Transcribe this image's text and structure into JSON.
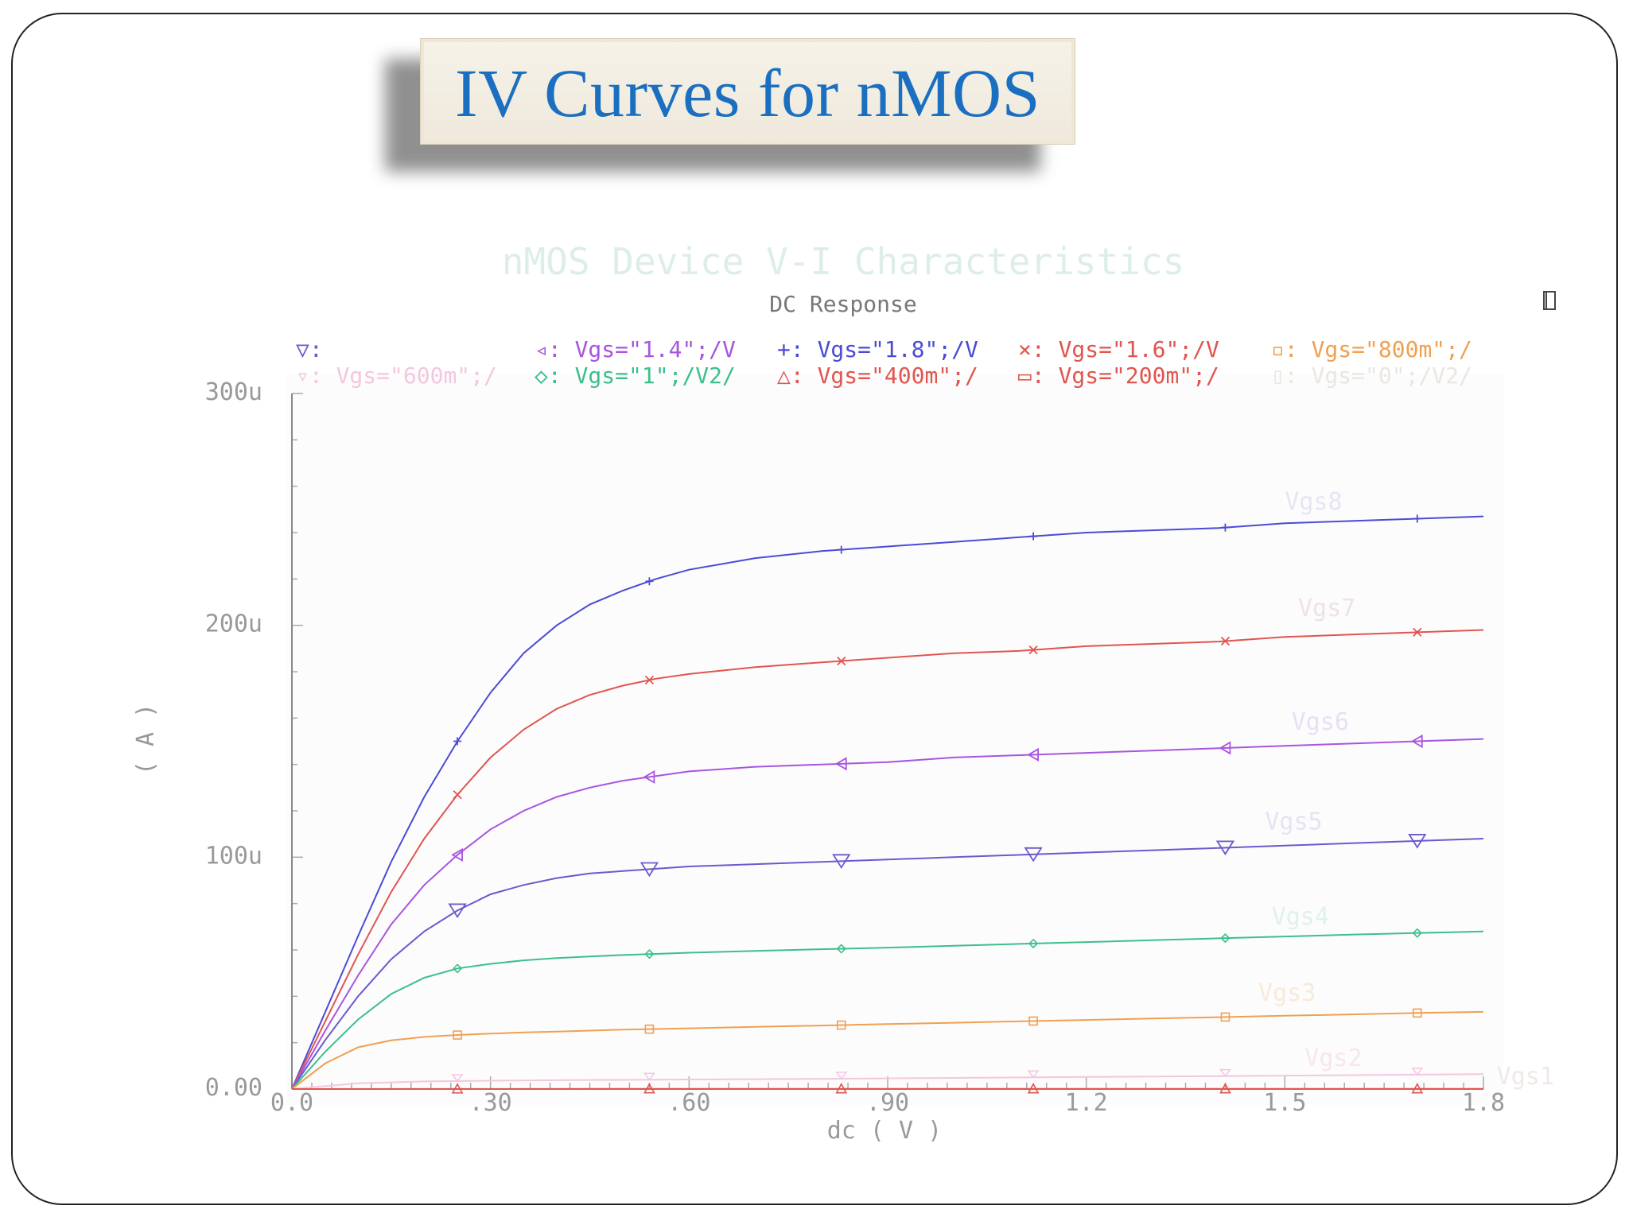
{
  "slide": {
    "title": "IV Curves for nMOS"
  },
  "chart_data": {
    "type": "line",
    "title": "nMOS Device V-I Characteristics",
    "subtitle": "DC Response",
    "xlabel": "dc ( V )",
    "ylabel": "( A )",
    "xlim": [
      0,
      1.8
    ],
    "ylim": [
      0,
      300
    ],
    "x_ticks": [
      "0.0",
      ".30",
      ".60",
      ".90",
      "1.2",
      "1.5",
      "1.8"
    ],
    "y_ticks": [
      "0.00",
      "100u",
      "200u",
      "300u"
    ],
    "corner_icon": "window-icon",
    "legend": [
      {
        "marker": "▽:",
        "text": "",
        "color": "#6a5acd"
      },
      {
        "marker": "◃:",
        "text": "Vgs=\"1.4\";/V",
        "color": "#a855e0"
      },
      {
        "marker": "+:",
        "text": "Vgs=\"1.8\";/V",
        "color": "#4b4bd6"
      },
      {
        "marker": "×:",
        "text": "Vgs=\"1.6\";/V",
        "color": "#e0554f"
      },
      {
        "marker": "▫:",
        "text": "Vgs=\"800m\";/",
        "color": "#f0a050"
      },
      {
        "marker": "▿:",
        "text": "Vgs=\"600m\";/",
        "color": "#f4c6df"
      },
      {
        "marker": "◇:",
        "text": "Vgs=\"1\";/V2/",
        "color": "#3cc08a"
      },
      {
        "marker": "△:",
        "text": "Vgs=\"400m\";/",
        "color": "#e0554f"
      },
      {
        "marker": "▭:",
        "text": "Vgs=\"200m\";/",
        "color": "#e0554f"
      },
      {
        "marker": "▯:",
        "text": "Vgs=\"0\";/V2/",
        "color": "#eae6e0"
      }
    ],
    "series": [
      {
        "name": "Vgs8",
        "color": "#4b4bd6",
        "marker": "plus",
        "x": [
          0,
          0.05,
          0.1,
          0.15,
          0.2,
          0.25,
          0.3,
          0.35,
          0.4,
          0.45,
          0.5,
          0.55,
          0.6,
          0.7,
          0.8,
          0.9,
          1.0,
          1.1,
          1.2,
          1.3,
          1.4,
          1.5,
          1.6,
          1.7,
          1.8
        ],
        "values": [
          0,
          33,
          66,
          98,
          126,
          150,
          171,
          188,
          200,
          209,
          215,
          220,
          224,
          229,
          232,
          234,
          236,
          238,
          240,
          241,
          242,
          244,
          245,
          246,
          247
        ]
      },
      {
        "name": "Vgs7",
        "color": "#e0554f",
        "marker": "cross",
        "x": [
          0,
          0.05,
          0.1,
          0.15,
          0.2,
          0.25,
          0.3,
          0.35,
          0.4,
          0.45,
          0.5,
          0.55,
          0.6,
          0.7,
          0.8,
          0.9,
          1.0,
          1.1,
          1.2,
          1.3,
          1.4,
          1.5,
          1.6,
          1.7,
          1.8
        ],
        "values": [
          0,
          29,
          58,
          85,
          108,
          127,
          143,
          155,
          164,
          170,
          174,
          177,
          179,
          182,
          184,
          186,
          188,
          189,
          191,
          192,
          193,
          195,
          196,
          197,
          198
        ]
      },
      {
        "name": "Vgs6",
        "color": "#a855e0",
        "marker": "tri-left",
        "x": [
          0,
          0.05,
          0.1,
          0.15,
          0.2,
          0.25,
          0.3,
          0.35,
          0.4,
          0.45,
          0.5,
          0.55,
          0.6,
          0.7,
          0.8,
          0.9,
          1.0,
          1.1,
          1.2,
          1.3,
          1.4,
          1.5,
          1.6,
          1.7,
          1.8
        ],
        "values": [
          0,
          25,
          49,
          71,
          88,
          101,
          112,
          120,
          126,
          130,
          133,
          135,
          137,
          139,
          140,
          141,
          143,
          144,
          145,
          146,
          147,
          148,
          149,
          150,
          151
        ]
      },
      {
        "name": "Vgs5",
        "color": "#6a5acd",
        "marker": "tri-down",
        "x": [
          0,
          0.05,
          0.1,
          0.15,
          0.2,
          0.25,
          0.3,
          0.35,
          0.4,
          0.45,
          0.5,
          0.55,
          0.6,
          0.7,
          0.8,
          0.9,
          1.0,
          1.1,
          1.2,
          1.3,
          1.4,
          1.5,
          1.6,
          1.7,
          1.8
        ],
        "values": [
          0,
          21,
          40,
          56,
          68,
          77,
          84,
          88,
          91,
          93,
          94,
          95,
          96,
          97,
          98,
          99,
          100,
          101,
          102,
          103,
          104,
          105,
          106,
          107,
          108
        ]
      },
      {
        "name": "Vgs4",
        "color": "#3cc08a",
        "marker": "diamond",
        "x": [
          0,
          0.05,
          0.1,
          0.15,
          0.2,
          0.25,
          0.3,
          0.35,
          0.4,
          0.45,
          0.5,
          0.55,
          0.6,
          0.7,
          0.8,
          0.9,
          1.0,
          1.1,
          1.2,
          1.3,
          1.4,
          1.5,
          1.6,
          1.7,
          1.8
        ],
        "values": [
          0,
          16,
          30,
          41,
          48,
          52,
          54,
          55.5,
          56.5,
          57.2,
          57.8,
          58.3,
          58.8,
          59.6,
          60.3,
          61,
          61.8,
          62.6,
          63.4,
          64.2,
          65,
          65.8,
          66.6,
          67.3,
          68
        ]
      },
      {
        "name": "Vgs3",
        "color": "#f0a050",
        "marker": "square",
        "x": [
          0,
          0.05,
          0.1,
          0.15,
          0.2,
          0.25,
          0.3,
          0.35,
          0.4,
          0.45,
          0.5,
          0.55,
          0.6,
          0.7,
          0.8,
          0.9,
          1.0,
          1.1,
          1.2,
          1.3,
          1.4,
          1.5,
          1.6,
          1.7,
          1.8
        ],
        "values": [
          0,
          11,
          18,
          21,
          22.5,
          23.3,
          23.9,
          24.4,
          24.8,
          25.2,
          25.6,
          25.9,
          26.2,
          26.8,
          27.4,
          28,
          28.6,
          29.2,
          29.8,
          30.4,
          31,
          31.6,
          32.2,
          32.8,
          33.3
        ]
      },
      {
        "name": "Vgs2",
        "color": "#f4c6df",
        "marker": "tri-down-small",
        "x": [
          0,
          0.1,
          0.2,
          0.3,
          0.4,
          0.6,
          0.8,
          1.0,
          1.2,
          1.4,
          1.6,
          1.8
        ],
        "values": [
          0,
          2.5,
          3.3,
          3.6,
          3.8,
          4.1,
          4.4,
          4.8,
          5.2,
          5.6,
          6.0,
          6.4
        ]
      },
      {
        "name": "Vgs1",
        "color": "#e0554f",
        "marker": "triangle",
        "x": [
          0,
          0.6,
          1.2,
          1.8
        ],
        "values": [
          0,
          0.1,
          0.1,
          0.1
        ]
      }
    ],
    "marker_x": [
      0.25,
      0.54,
      0.83,
      1.12,
      1.41,
      1.7
    ],
    "series_labels": [
      {
        "text": "Vgs8",
        "x": 1.5,
        "y": 250,
        "color": "#e6e6f3"
      },
      {
        "text": "Vgs7",
        "x": 1.52,
        "y": 204,
        "color": "#f0e2e4"
      },
      {
        "text": "Vgs6",
        "x": 1.51,
        "y": 155,
        "color": "#eadff3"
      },
      {
        "text": "Vgs5",
        "x": 1.47,
        "y": 112,
        "color": "#e4e4f2"
      },
      {
        "text": "Vgs4",
        "x": 1.48,
        "y": 71,
        "color": "#dff2ea"
      },
      {
        "text": "Vgs3",
        "x": 1.46,
        "y": 38,
        "color": "#f8ead8"
      },
      {
        "text": "Vgs2",
        "x": 1.53,
        "y": 10,
        "color": "#f7e6ef"
      },
      {
        "text": "Vgs1",
        "x": 1.82,
        "y": 2,
        "color": "#f2e8e8"
      }
    ]
  }
}
